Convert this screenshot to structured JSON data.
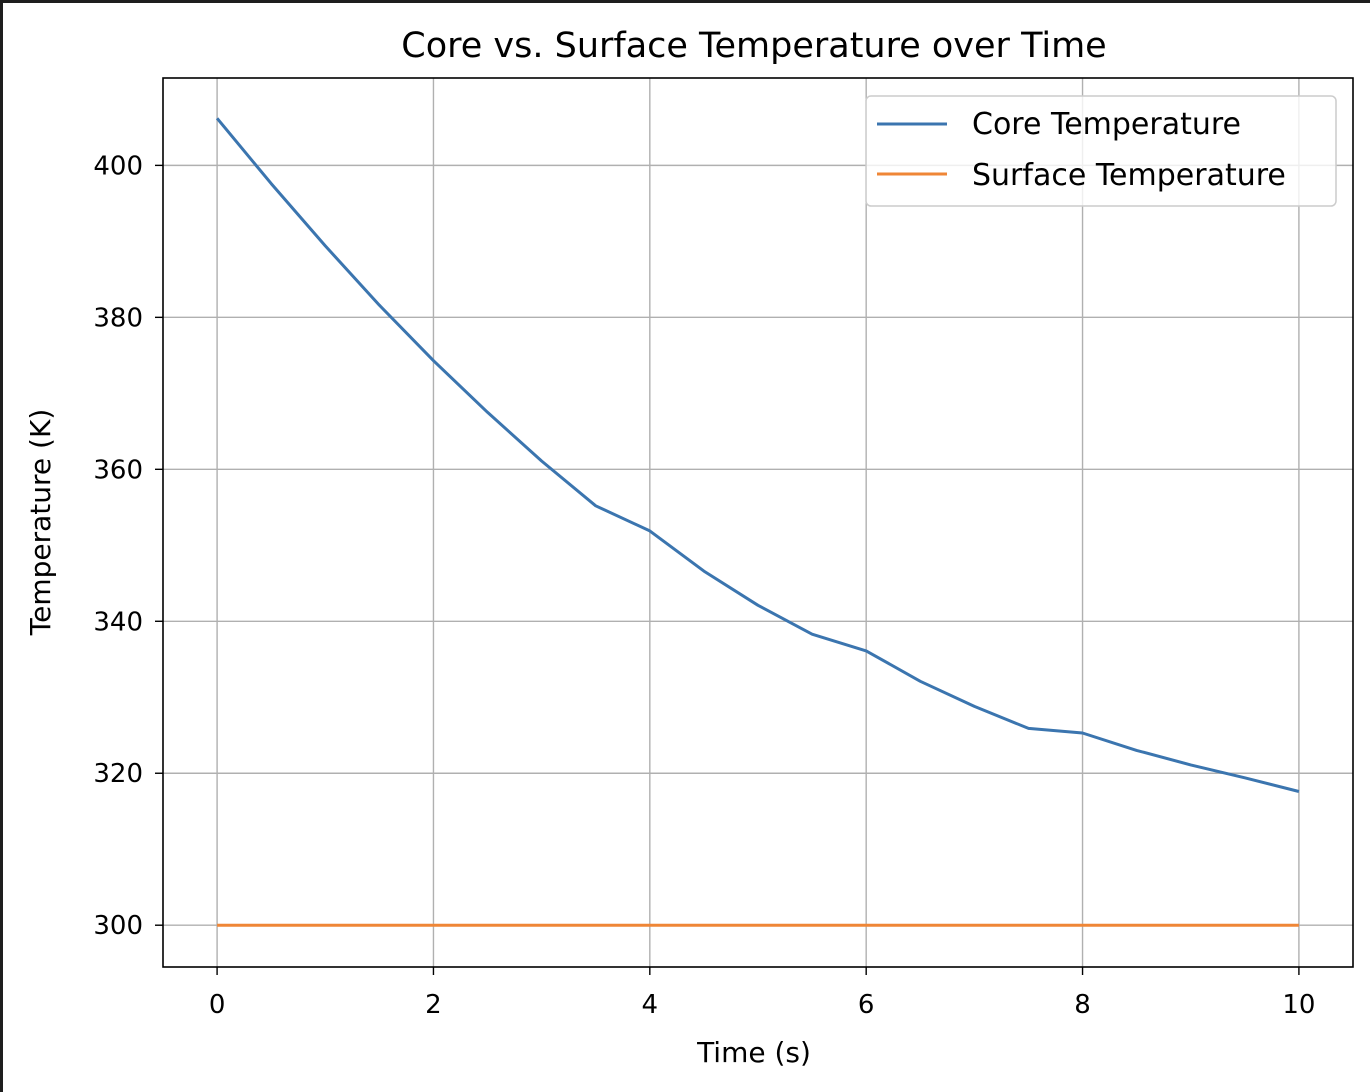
{
  "chart_data": {
    "type": "line",
    "title": "Core vs. Surface Temperature over Time",
    "xlabel": "Time (s)",
    "ylabel": "Temperature (K)",
    "xlim": [
      -0.5,
      10.5
    ],
    "ylim": [
      294.5,
      411.5
    ],
    "xticks": [
      0,
      2,
      4,
      6,
      8,
      10
    ],
    "yticks": [
      300,
      320,
      340,
      360,
      380,
      400
    ],
    "grid": true,
    "legend_position": "top-right",
    "series": [
      {
        "name": "Core Temperature",
        "color": "#3b75af",
        "x": [
          0,
          0.5,
          1,
          1.5,
          2,
          2.5,
          3,
          3.5,
          4,
          4.5,
          5,
          5.5,
          6,
          6.5,
          7,
          7.5,
          8,
          8.5,
          9,
          9.5,
          10
        ],
        "y": [
          406.2,
          397.6,
          389.4,
          381.6,
          374.3,
          367.5,
          361.1,
          355.2,
          351.9,
          346.6,
          342.1,
          338.3,
          336.1,
          332.1,
          328.8,
          325.9,
          325.3,
          323.0,
          321.1,
          319.4,
          317.6
        ]
      },
      {
        "name": "Surface Temperature",
        "color": "#ef8636",
        "x": [
          0,
          10
        ],
        "y": [
          300,
          300
        ]
      }
    ]
  }
}
